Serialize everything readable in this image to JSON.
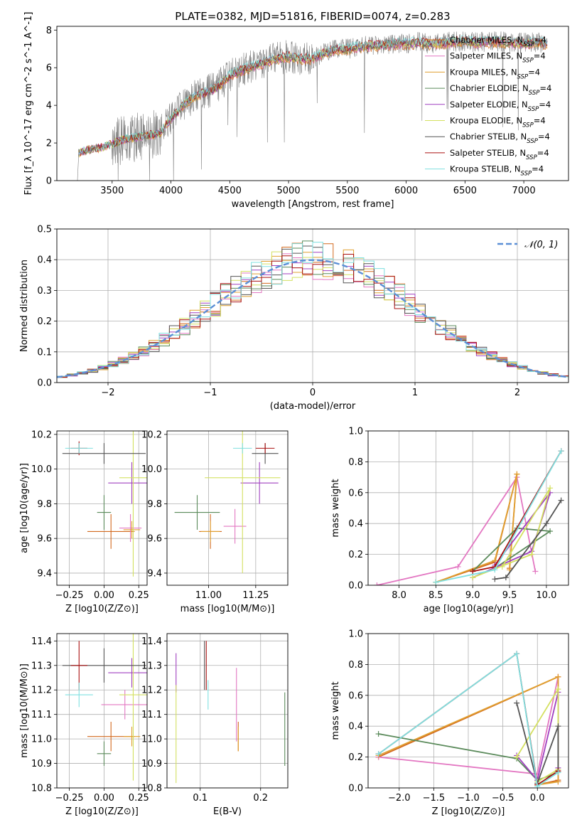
{
  "colors": {
    "Chabrier MILES": "#d2691e",
    "Salpeter MILES": "#e377c2",
    "Kroupa MILES": "#e0a030",
    "Chabrier ELODIE": "#5a8a5a",
    "Salpeter ELODIE": "#a040c0",
    "Kroupa ELODIE": "#d4e060",
    "Chabrier STELIB": "#555555",
    "Salpeter STELIB": "#aa1010",
    "Kroupa STELIB": "#7fe0e0",
    "data": "#808080",
    "gauss": "#5b8fd6"
  },
  "chart_data": [
    {
      "id": "spectrum",
      "type": "line",
      "title": "PLATE=0382, MJD=51816, FIBERID=0074, z=0.283",
      "xlabel": "wavelength [Angstrom, rest frame]",
      "ylabel": "Flux [f_λ 10^-17 erg cm^-2 s^-1 A^-1]",
      "xlim": [
        3030,
        7380
      ],
      "ylim": [
        0,
        8.2
      ],
      "xticks": [
        3500,
        4000,
        4500,
        5000,
        5500,
        6000,
        6500,
        7000
      ],
      "yticks": [
        0,
        2,
        4,
        6,
        8
      ],
      "grid": false,
      "legend_position": "upper-right",
      "continuum": {
        "x": [
          3220,
          3300,
          3400,
          3500,
          3600,
          3700,
          3800,
          3900,
          4000,
          4100,
          4200,
          4300,
          4400,
          4500,
          4600,
          4700,
          4800,
          4900,
          5000,
          5100,
          5200,
          5300,
          5400,
          5500,
          5600,
          5700,
          5800,
          5900,
          6000,
          6100,
          6200,
          6300,
          6400,
          6500,
          6600,
          6700,
          6800,
          6900,
          7000,
          7100,
          7200
        ],
        "y": [
          1.5,
          1.65,
          1.75,
          1.95,
          2.2,
          2.3,
          2.4,
          2.5,
          3.3,
          4.0,
          4.5,
          4.7,
          5.0,
          5.6,
          5.9,
          6.1,
          6.3,
          6.5,
          6.6,
          6.5,
          6.5,
          6.8,
          6.95,
          7.0,
          7.1,
          7.2,
          7.2,
          7.3,
          7.3,
          7.35,
          7.3,
          7.3,
          7.4,
          7.4,
          7.35,
          7.4,
          7.4,
          7.35,
          7.3,
          7.35,
          7.3
        ]
      },
      "series": [
        {
          "name": "Chabrier MILES, N_SSP=4"
        },
        {
          "name": "Salpeter MILES, N_SSP=4"
        },
        {
          "name": "Kroupa MILES, N_SSP=4"
        },
        {
          "name": "Chabrier ELODIE, N_SSP=4"
        },
        {
          "name": "Salpeter ELODIE, N_SSP=4"
        },
        {
          "name": "Kroupa ELODIE, N_SSP=4"
        },
        {
          "name": "Chabrier STELIB, N_SSP=4"
        },
        {
          "name": "Salpeter STELIB, N_SSP=4"
        },
        {
          "name": "Kroupa STELIB, N_SSP=4"
        }
      ]
    },
    {
      "id": "residuals",
      "type": "line",
      "xlabel": "(data-model)/error",
      "ylabel": "Normed distribution",
      "xlim": [
        -2.5,
        2.5
      ],
      "ylim": [
        0,
        0.5
      ],
      "xticks": [
        -2,
        -1,
        0,
        1,
        2
      ],
      "yticks": [
        0.0,
        0.1,
        0.2,
        0.3,
        0.4,
        0.5
      ],
      "grid": true,
      "legend_position": "upper-right",
      "gauss_label": "𝒩(0, 1)",
      "bin_width": 0.1
    },
    {
      "id": "age-Z",
      "type": "scatter",
      "xlabel": "Z [log10(Z/Z⊙)]",
      "ylabel": "age [log10(age/yr)]",
      "xlim": [
        -0.34,
        0.31
      ],
      "ylim": [
        9.33,
        10.22
      ],
      "xticks": [
        -0.25,
        0.0,
        0.25
      ],
      "yticks": [
        9.4,
        9.6,
        9.8,
        10.0,
        10.2
      ],
      "grid": true,
      "points": [
        {
          "x": 0.05,
          "y": 9.64,
          "xe": 0.17,
          "ye": 0.1
        },
        {
          "x": 0.19,
          "y": 9.66,
          "xe": 0.08,
          "ye": 0.08
        },
        {
          "x": 0.2,
          "y": 9.65,
          "xe": 0.06,
          "ye": 0.05
        },
        {
          "x": 0.0,
          "y": 9.75,
          "xe": 0.05,
          "ye": 0.1
        },
        {
          "x": 0.2,
          "y": 9.92,
          "xe": 0.17,
          "ye": 0.12
        },
        {
          "x": 0.21,
          "y": 9.95,
          "xe": 0.1,
          "ye": 0.57
        },
        {
          "x": 0.0,
          "y": 10.09,
          "xe": 0.3,
          "ye": 0.06
        },
        {
          "x": -0.18,
          "y": 10.12,
          "xe": 0.06,
          "ye": 0.04
        },
        {
          "x": -0.18,
          "y": 10.12,
          "xe": 0.1,
          "ye": 0.03
        }
      ]
    },
    {
      "id": "age-mass",
      "type": "scatter",
      "xlabel": "mass [log10(M/M⊙)]",
      "ylabel": "",
      "xlim": [
        10.78,
        11.42
      ],
      "ylim": [
        9.33,
        10.22
      ],
      "xticks": [
        11.0,
        11.25
      ],
      "yticks": [
        9.4,
        9.6,
        9.8,
        10.0,
        10.2
      ],
      "grid": true,
      "points": [
        {
          "x": 11.01,
          "y": 9.64,
          "xe": 0.06,
          "ye": 0.1
        },
        {
          "x": 11.14,
          "y": 9.67,
          "xe": 0.06,
          "ye": 0.1
        },
        {
          "x": 11.01,
          "y": 9.64,
          "xe": 0.05,
          "ye": 0.06
        },
        {
          "x": 10.94,
          "y": 9.75,
          "xe": 0.12,
          "ye": 0.1
        },
        {
          "x": 11.27,
          "y": 9.92,
          "xe": 0.1,
          "ye": 0.12
        },
        {
          "x": 11.18,
          "y": 9.95,
          "xe": 0.2,
          "ye": 0.55
        },
        {
          "x": 11.3,
          "y": 10.09,
          "xe": 0.07,
          "ye": 0.06
        },
        {
          "x": 11.3,
          "y": 10.12,
          "xe": 0.05,
          "ye": 0.03
        },
        {
          "x": 11.18,
          "y": 10.12,
          "xe": 0.05,
          "ye": 0.03
        }
      ]
    },
    {
      "id": "weight-age",
      "type": "line",
      "xlabel": "age [log10(age/yr)]",
      "ylabel": "mass weight",
      "xlim": [
        7.58,
        10.3
      ],
      "ylim": [
        0,
        1
      ],
      "xticks": [
        8.0,
        8.5,
        9.0,
        9.5,
        10.0
      ],
      "yticks": [
        0.0,
        0.2,
        0.4,
        0.6,
        0.8,
        1.0
      ],
      "grid": true,
      "series": [
        {
          "x": [
            8.5,
            9.3,
            9.6,
            9.5
          ],
          "y": [
            0.02,
            0.15,
            0.72,
            0.11
          ]
        },
        {
          "x": [
            7.7,
            8.8,
            9.6,
            9.85
          ],
          "y": [
            0.0,
            0.12,
            0.7,
            0.09
          ]
        },
        {
          "x": [
            8.5,
            9.3,
            9.6,
            9.5
          ],
          "y": [
            0.02,
            0.16,
            0.72,
            0.1
          ]
        },
        {
          "x": [
            9.0,
            9.6,
            10.05,
            9.3
          ],
          "y": [
            0.09,
            0.37,
            0.35,
            0.11
          ]
        },
        {
          "x": [
            9.0,
            9.8,
            10.05,
            9.3
          ],
          "y": [
            0.05,
            0.22,
            0.6,
            0.13
          ]
        },
        {
          "x": [
            9.0,
            9.8,
            10.05,
            9.4
          ],
          "y": [
            0.05,
            0.2,
            0.63,
            0.12
          ]
        },
        {
          "x": [
            9.3,
            9.45,
            10.0,
            10.2
          ],
          "y": [
            0.04,
            0.05,
            0.4,
            0.55
          ]
        },
        {
          "x": [
            9.0,
            9.3,
            10.2
          ],
          "y": [
            0.09,
            0.12,
            0.87
          ]
        },
        {
          "x": [
            8.5,
            9.3,
            10.2
          ],
          "y": [
            0.02,
            0.1,
            0.87
          ]
        }
      ]
    },
    {
      "id": "mass-Z",
      "type": "scatter",
      "xlabel": "Z [log10(Z/Z⊙)]",
      "ylabel": "mass [log10(M/M⊙)]",
      "xlim": [
        -0.34,
        0.31
      ],
      "ylim": [
        10.8,
        11.43
      ],
      "xticks": [
        -0.25,
        0.0,
        0.25
      ],
      "yticks": [
        10.8,
        10.9,
        11.0,
        11.1,
        11.2,
        11.3,
        11.4
      ],
      "grid": true,
      "points": [
        {
          "x": 0.05,
          "y": 11.01,
          "xe": 0.17,
          "ye": 0.06
        },
        {
          "x": 0.15,
          "y": 11.14,
          "xe": 0.17,
          "ye": 0.06
        },
        {
          "x": 0.2,
          "y": 11.01,
          "xe": 0.06,
          "ye": 0.04
        },
        {
          "x": 0.0,
          "y": 10.94,
          "xe": 0.05,
          "ye": 0.05
        },
        {
          "x": 0.2,
          "y": 11.27,
          "xe": 0.17,
          "ye": 0.06
        },
        {
          "x": 0.21,
          "y": 11.18,
          "xe": 0.1,
          "ye": 0.35
        },
        {
          "x": 0.0,
          "y": 11.3,
          "xe": 0.3,
          "ye": 0.07
        },
        {
          "x": -0.18,
          "y": 11.3,
          "xe": 0.06,
          "ye": 0.1
        },
        {
          "x": -0.18,
          "y": 11.18,
          "xe": 0.1,
          "ye": 0.05
        }
      ]
    },
    {
      "id": "mass-ebv",
      "type": "scatter",
      "xlabel": "E(B-V)",
      "ylabel": "",
      "xlim": [
        0.045,
        0.245
      ],
      "ylim": [
        10.8,
        11.43
      ],
      "xticks": [
        0.1,
        0.2
      ],
      "yticks": [
        10.8,
        10.9,
        11.0,
        11.1,
        11.2,
        11.3,
        11.4
      ],
      "grid": true,
      "points": [
        {
          "x": 0.163,
          "y": 11.01,
          "xe": 0,
          "ye": 0.06
        },
        {
          "x": 0.16,
          "y": 11.14,
          "xe": 0,
          "ye": 0.15
        },
        {
          "x": 0.163,
          "y": 11.0,
          "xe": 0,
          "ye": 0.05
        },
        {
          "x": 0.24,
          "y": 11.04,
          "xe": 0,
          "ye": 0.15
        },
        {
          "x": 0.06,
          "y": 11.27,
          "xe": 0,
          "ye": 0.08
        },
        {
          "x": 0.06,
          "y": 11.02,
          "xe": 0,
          "ye": 0.2
        },
        {
          "x": 0.107,
          "y": 11.3,
          "xe": 0,
          "ye": 0.1
        },
        {
          "x": 0.11,
          "y": 11.3,
          "xe": 0,
          "ye": 0.1
        },
        {
          "x": 0.113,
          "y": 11.18,
          "xe": 0,
          "ye": 0.06
        }
      ]
    },
    {
      "id": "weight-Z",
      "type": "line",
      "xlabel": "Z [log10(Z/Z⊙)]",
      "ylabel": "mass weight",
      "xlim": [
        -2.45,
        0.45
      ],
      "ylim": [
        0,
        1
      ],
      "xticks": [
        -2.0,
        -1.5,
        -1.0,
        -0.5,
        0.0
      ],
      "yticks": [
        0.0,
        0.2,
        0.4,
        0.6,
        0.8,
        1.0
      ],
      "grid": true,
      "series": [
        {
          "x": [
            -2.3,
            0.3,
            0.3,
            0.0
          ],
          "y": [
            0.2,
            0.72,
            0.05,
            0.02
          ]
        },
        {
          "x": [
            -2.3,
            0.0,
            0.3,
            0.3
          ],
          "y": [
            0.2,
            0.09,
            0.72,
            0.04
          ]
        },
        {
          "x": [
            -2.3,
            0.3,
            0.3,
            0.0
          ],
          "y": [
            0.21,
            0.72,
            0.04,
            0.02
          ]
        },
        {
          "x": [
            -2.3,
            -0.3,
            0.0,
            0.3
          ],
          "y": [
            0.35,
            0.19,
            0.05,
            0.1
          ]
        },
        {
          "x": [
            -0.3,
            0.0,
            0.3,
            0.3
          ],
          "y": [
            0.21,
            0.05,
            0.62,
            0.13
          ]
        },
        {
          "x": [
            -0.3,
            0.3,
            0.3,
            0.0
          ],
          "y": [
            0.2,
            0.64,
            0.12,
            0.04
          ]
        },
        {
          "x": [
            -0.3,
            0.0,
            0.3,
            0.3
          ],
          "y": [
            0.55,
            0.03,
            0.4,
            0.11
          ]
        },
        {
          "x": [
            -2.3,
            -0.3,
            0.0,
            0.3
          ],
          "y": [
            0.22,
            0.87,
            0.02,
            0.11
          ]
        },
        {
          "x": [
            -2.3,
            -0.3,
            0.0,
            0.3
          ],
          "y": [
            0.22,
            0.87,
            0.01,
            0.1
          ]
        }
      ]
    }
  ]
}
